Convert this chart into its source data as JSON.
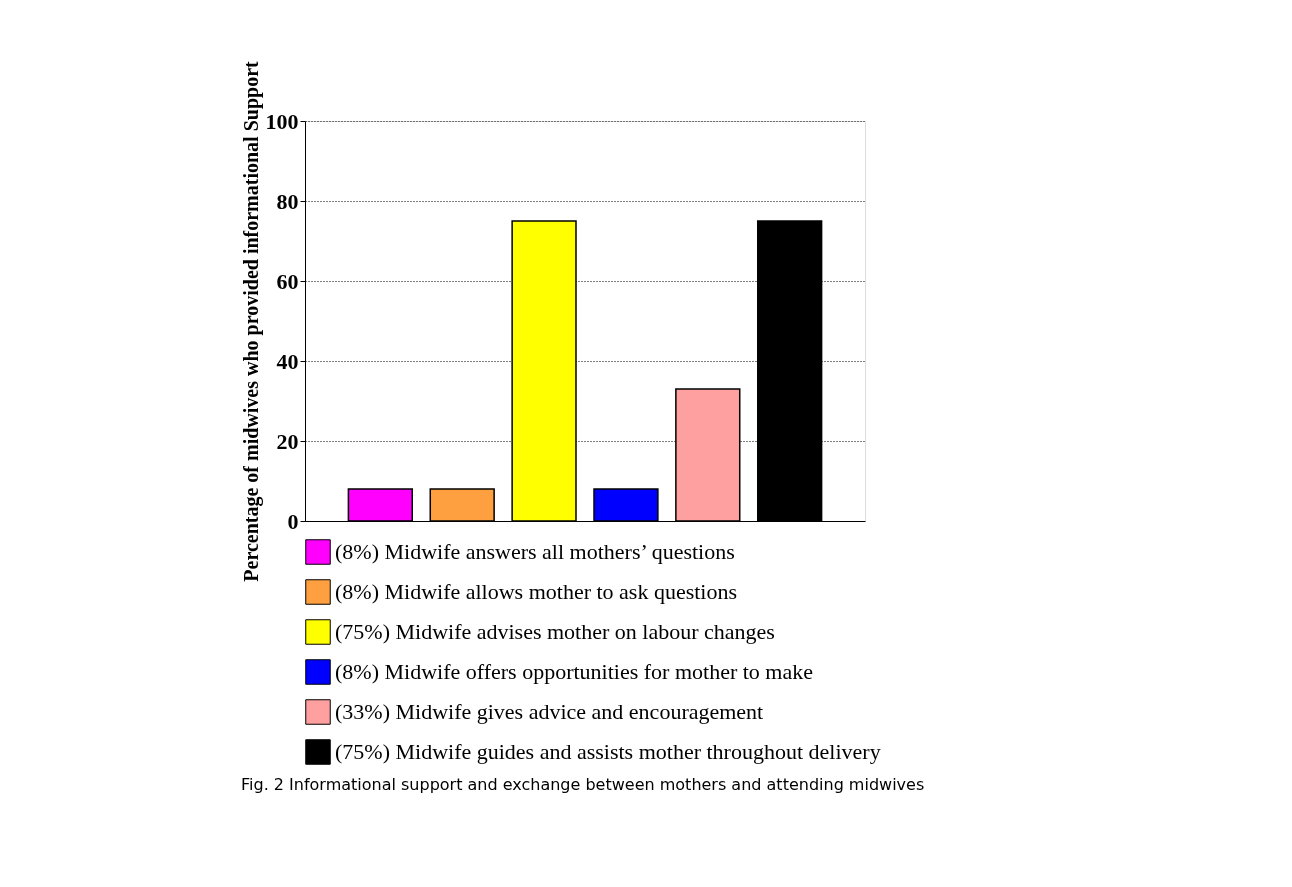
{
  "chart_data": {
    "type": "bar",
    "ylabel": "Percentage of midwives who provided informational Support",
    "categories": [
      null
    ],
    "series": [
      {
        "name": "(8%) Midwife answers all mothers’ questions",
        "color": "#ff00ff",
        "values": [
          8
        ]
      },
      {
        "name": "(8%) Midwife allows mother to ask questions",
        "color": "#ffa040",
        "values": [
          8
        ]
      },
      {
        "name": "(75%) Midwife advises mother on labour changes",
        "color": "#ffff00",
        "values": [
          75
        ]
      },
      {
        "name": "(8%) Midwife offers opportunities for mother to make",
        "color": "#0000ff",
        "values": [
          8
        ]
      },
      {
        "name": "(33%) Midwife gives advice and encouragement",
        "color": "#ffa0a0",
        "values": [
          33
        ]
      },
      {
        "name": "(75%) Midwife guides and assists mother throughout delivery",
        "color": "#000000",
        "values": [
          75
        ]
      }
    ],
    "ylim": [
      0,
      100
    ],
    "yticks": [
      0,
      20,
      40,
      60,
      80,
      100
    ],
    "grid": "y",
    "legend": "bottom",
    "tick_labels": "y",
    "annotations": [
      "Fig. 2 Informational support and exchange between mothers and attending midwives"
    ]
  }
}
